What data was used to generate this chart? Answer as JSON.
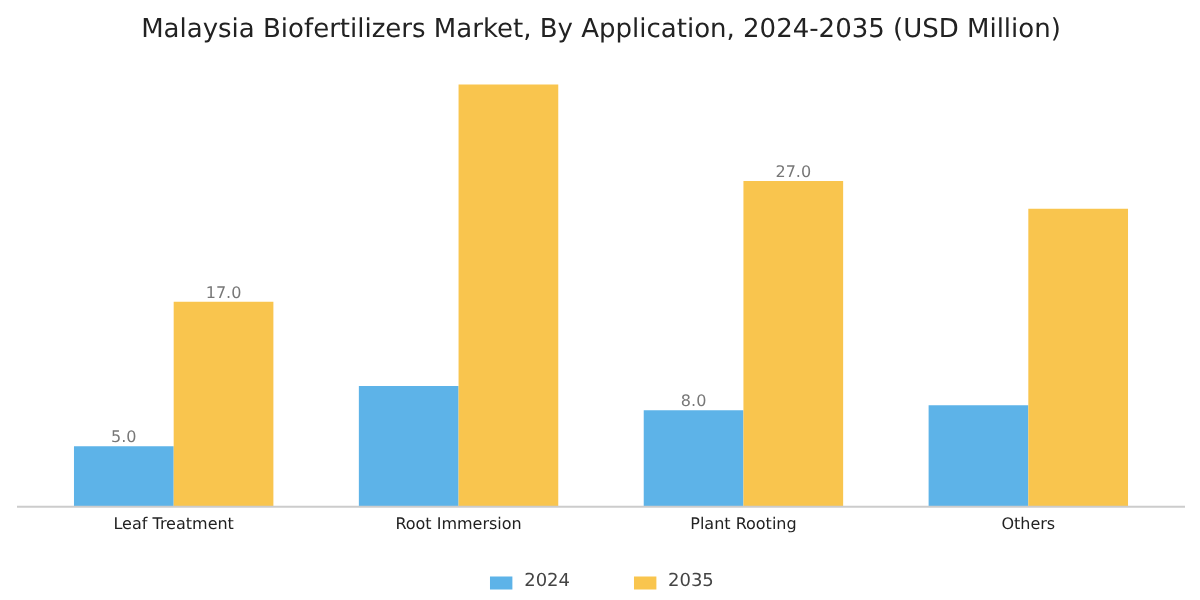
{
  "chart_data": {
    "type": "bar",
    "title": "Malaysia Biofertilizers Market, By Application, 2024-2035 (USD Million)",
    "categories": [
      "Leaf Treatment",
      "Root Immersion",
      "Plant Rooting",
      "Others"
    ],
    "series": [
      {
        "name": "2024",
        "color": "#5db3e8",
        "values": [
          5.0,
          10.0,
          8.0,
          8.4
        ],
        "value_labels": [
          "5.0",
          null,
          "8.0",
          null
        ]
      },
      {
        "name": "2035",
        "color": "#f9c54e",
        "values": [
          17.0,
          35.0,
          27.0,
          24.7
        ],
        "value_labels": [
          "17.0",
          null,
          "27.0",
          null
        ]
      }
    ],
    "legend": "bottom"
  }
}
